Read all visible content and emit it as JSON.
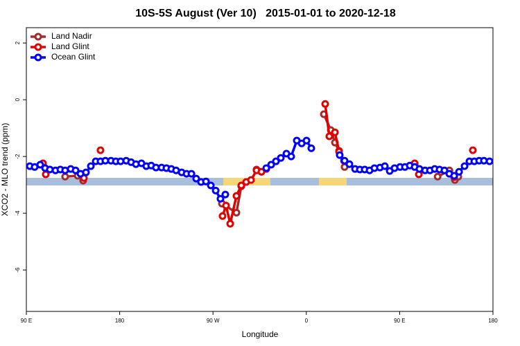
{
  "chart_data": {
    "type": "line",
    "title": "10S-5S August (Ver 10)   2015-01-01 to 2020-12-18",
    "x_label": "Longitude",
    "y_label": "XCO2 - MLO trend (ppm)",
    "xlim": [
      90,
      540
    ],
    "ylim": [
      -7.46,
      2.54
    ],
    "xticks": [
      {
        "value": 90,
        "label": "90 E"
      },
      180,
      {
        "value": 270,
        "label": "90 W"
      },
      {
        "value": 360,
        "label": "0"
      },
      {
        "value": 450,
        "label": "90 E"
      },
      {
        "value": 540,
        "label": "180"
      }
    ],
    "yticks": [
      2,
      0,
      -2,
      -4,
      -6
    ],
    "legend": "top-left",
    "series": [
      {
        "name": "Land Nadir",
        "color": "#a52a2a",
        "x": [
          106,
          120,
          127.4,
          139.5,
          144.8,
          200,
          278.6,
          292.6,
          297.3,
          305,
          312,
          316.7,
          340,
          376.9,
          383.6,
          387.6,
          391.6,
          396.9,
          430,
          464.5,
          475,
          486.6,
          498,
          503.3,
          506.6
        ],
        "values": [
          -2.29,
          null,
          -2.71,
          -2.68,
          -2.85,
          null,
          -3.66,
          -3.98,
          -3.05,
          null,
          -2.46,
          -2.54,
          null,
          -0.51,
          -1.07,
          -1.51,
          -1.8,
          -2.37,
          null,
          -2.29,
          null,
          -2.71,
          -2.49,
          -2.83,
          -2.71
        ]
      },
      {
        "name": "Land Glint",
        "color": "#e00000",
        "x": [
          106,
          108.7,
          130,
          145.5,
          155,
          161.5,
          200,
          279.2,
          282.6,
          286.6,
          292.6,
          297.3,
          302,
          306.7,
          312,
          316.7,
          321.4,
          350,
          378.2,
          382.2,
          387.6,
          391.6,
          396.3,
          430,
          464.5,
          468.5,
          490,
          502.6,
          510,
          520.6
        ],
        "values": [
          -2.24,
          -2.63,
          null,
          -2.76,
          null,
          -1.78,
          null,
          -4.1,
          -3.73,
          -4.37,
          -3.39,
          -3.02,
          -2.9,
          -2.83,
          -2.49,
          -2.54,
          -2.44,
          null,
          -0.15,
          -1.29,
          -1.15,
          -1.83,
          -2.15,
          null,
          -2.24,
          -2.63,
          null,
          -2.73,
          null,
          -1.78
        ]
      },
      {
        "name": "Ocean Glint",
        "color": "#0000ff",
        "x": [
          93.3,
          98,
          103.4,
          108.1,
          112.7,
          118.1,
          122.8,
          127.4,
          132.8,
          137.5,
          142.2,
          147.5,
          152.2,
          156.9,
          161.5,
          166.2,
          171.6,
          176.3,
          180.9,
          186.3,
          191,
          195.7,
          201,
          205.7,
          210.4,
          215,
          220.4,
          225.1,
          229.8,
          234.4,
          239.8,
          244.5,
          249.2,
          253.8,
          258.5,
          263.2,
          267.9,
          272.6,
          277.2,
          281.9,
          300,
          321.4,
          326.1,
          330.7,
          335.4,
          340.8,
          345.4,
          350.8,
          355.5,
          360.2,
          364.8,
          380,
          392.2,
          396.9,
          401.6,
          407,
          411.6,
          416.3,
          421,
          425.7,
          431,
          435.7,
          440.4,
          445.1,
          450.4,
          455.1,
          459.8,
          464.5,
          469.1,
          474.5,
          479.2,
          483.8,
          488.5,
          493.2,
          497.9,
          502.6,
          507.3,
          512.6,
          517.3,
          522,
          526.7,
          531.3,
          536.7
        ],
        "values": [
          -2.34,
          -2.37,
          -2.29,
          -2.41,
          -2.46,
          -2.49,
          -2.46,
          -2.49,
          -2.44,
          -2.49,
          -2.61,
          -2.56,
          -2.34,
          -2.17,
          -2.17,
          -2.15,
          -2.15,
          -2.17,
          -2.17,
          -2.15,
          -2.2,
          -2.27,
          -2.24,
          -2.34,
          -2.32,
          -2.39,
          -2.39,
          -2.41,
          -2.44,
          -2.49,
          -2.56,
          -2.61,
          -2.61,
          -2.78,
          -2.9,
          -2.88,
          -3.02,
          -3.2,
          -3.49,
          -3.34,
          null,
          -2.41,
          -2.29,
          -2.17,
          -2.05,
          -1.9,
          -2.0,
          -1.44,
          -1.54,
          -1.44,
          -1.71,
          null,
          -1.95,
          -2.15,
          -2.27,
          -2.44,
          -2.46,
          -2.46,
          -2.49,
          -2.41,
          -2.39,
          -2.34,
          -2.51,
          -2.41,
          -2.37,
          -2.37,
          -2.32,
          -2.37,
          -2.44,
          -2.49,
          -2.49,
          -2.44,
          -2.46,
          -2.49,
          -2.61,
          -2.68,
          -2.54,
          -2.34,
          -2.17,
          -2.17,
          -2.15,
          -2.15,
          -2.17
        ]
      }
    ]
  }
}
